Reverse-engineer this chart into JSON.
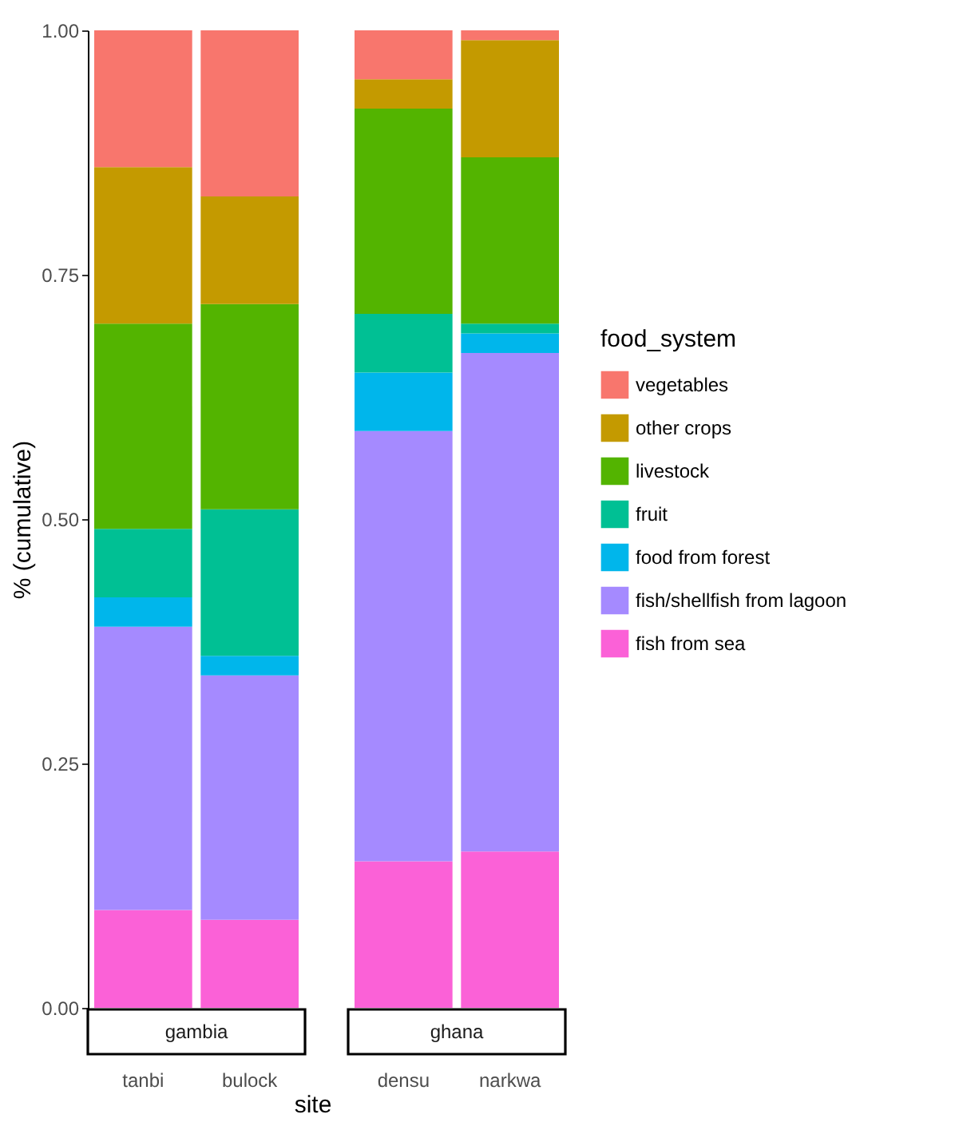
{
  "chart_data": [
    {
      "type": "bar",
      "title": "gambia",
      "xlabel": "site",
      "ylabel": "% (cumulative)",
      "legend_title": "food_system",
      "stacked": true,
      "grid": false,
      "legend": "right",
      "categories": [
        "tanbi",
        "bulock"
      ],
      "ylim": [
        0,
        1
      ],
      "yticks": [
        {
          "value": 0,
          "label": "0.00"
        },
        {
          "value": 0.25,
          "label": "0.25"
        },
        {
          "value": 0.5,
          "label": "0.50"
        },
        {
          "value": 0.75,
          "label": "0.75"
        },
        {
          "value": 1,
          "label": "1.00"
        }
      ],
      "series": [
        {
          "name": "fish from sea",
          "color": "#fb61d7",
          "values": [
            0.1,
            0.09
          ]
        },
        {
          "name": "fish/shellfish from lagoon",
          "color": "#a58aff",
          "values": [
            0.29,
            0.25
          ]
        },
        {
          "name": "food from forest",
          "color": "#00b6eb",
          "values": [
            0.03,
            0.02
          ]
        },
        {
          "name": "fruit",
          "color": "#00c094",
          "values": [
            0.07,
            0.15
          ]
        },
        {
          "name": "livestock",
          "color": "#53b400",
          "values": [
            0.21,
            0.21
          ]
        },
        {
          "name": "other crops",
          "color": "#c49a00",
          "values": [
            0.16,
            0.11
          ]
        },
        {
          "name": "vegetables",
          "color": "#f8766d",
          "values": [
            0.14,
            0.17
          ]
        }
      ]
    },
    {
      "type": "bar",
      "title": "ghana",
      "stacked": true,
      "grid": false,
      "legend": "right",
      "tick_labels": "x",
      "categories": [
        "densu",
        "narkwa"
      ],
      "ylim": [
        0,
        1
      ],
      "series": [
        {
          "name": "fish from sea",
          "color": "#fb61d7",
          "values": [
            0.15,
            0.16
          ]
        },
        {
          "name": "fish/shellfish from lagoon",
          "color": "#a58aff",
          "values": [
            0.44,
            0.51
          ]
        },
        {
          "name": "food from forest",
          "color": "#00b6eb",
          "values": [
            0.06,
            0.02
          ]
        },
        {
          "name": "fruit",
          "color": "#00c094",
          "values": [
            0.06,
            0.01
          ]
        },
        {
          "name": "livestock",
          "color": "#53b400",
          "values": [
            0.21,
            0.17
          ]
        },
        {
          "name": "other crops",
          "color": "#c49a00",
          "values": [
            0.03,
            0.12
          ]
        },
        {
          "name": "vegetables",
          "color": "#f8766d",
          "values": [
            0.05,
            0.01
          ]
        }
      ]
    }
  ]
}
